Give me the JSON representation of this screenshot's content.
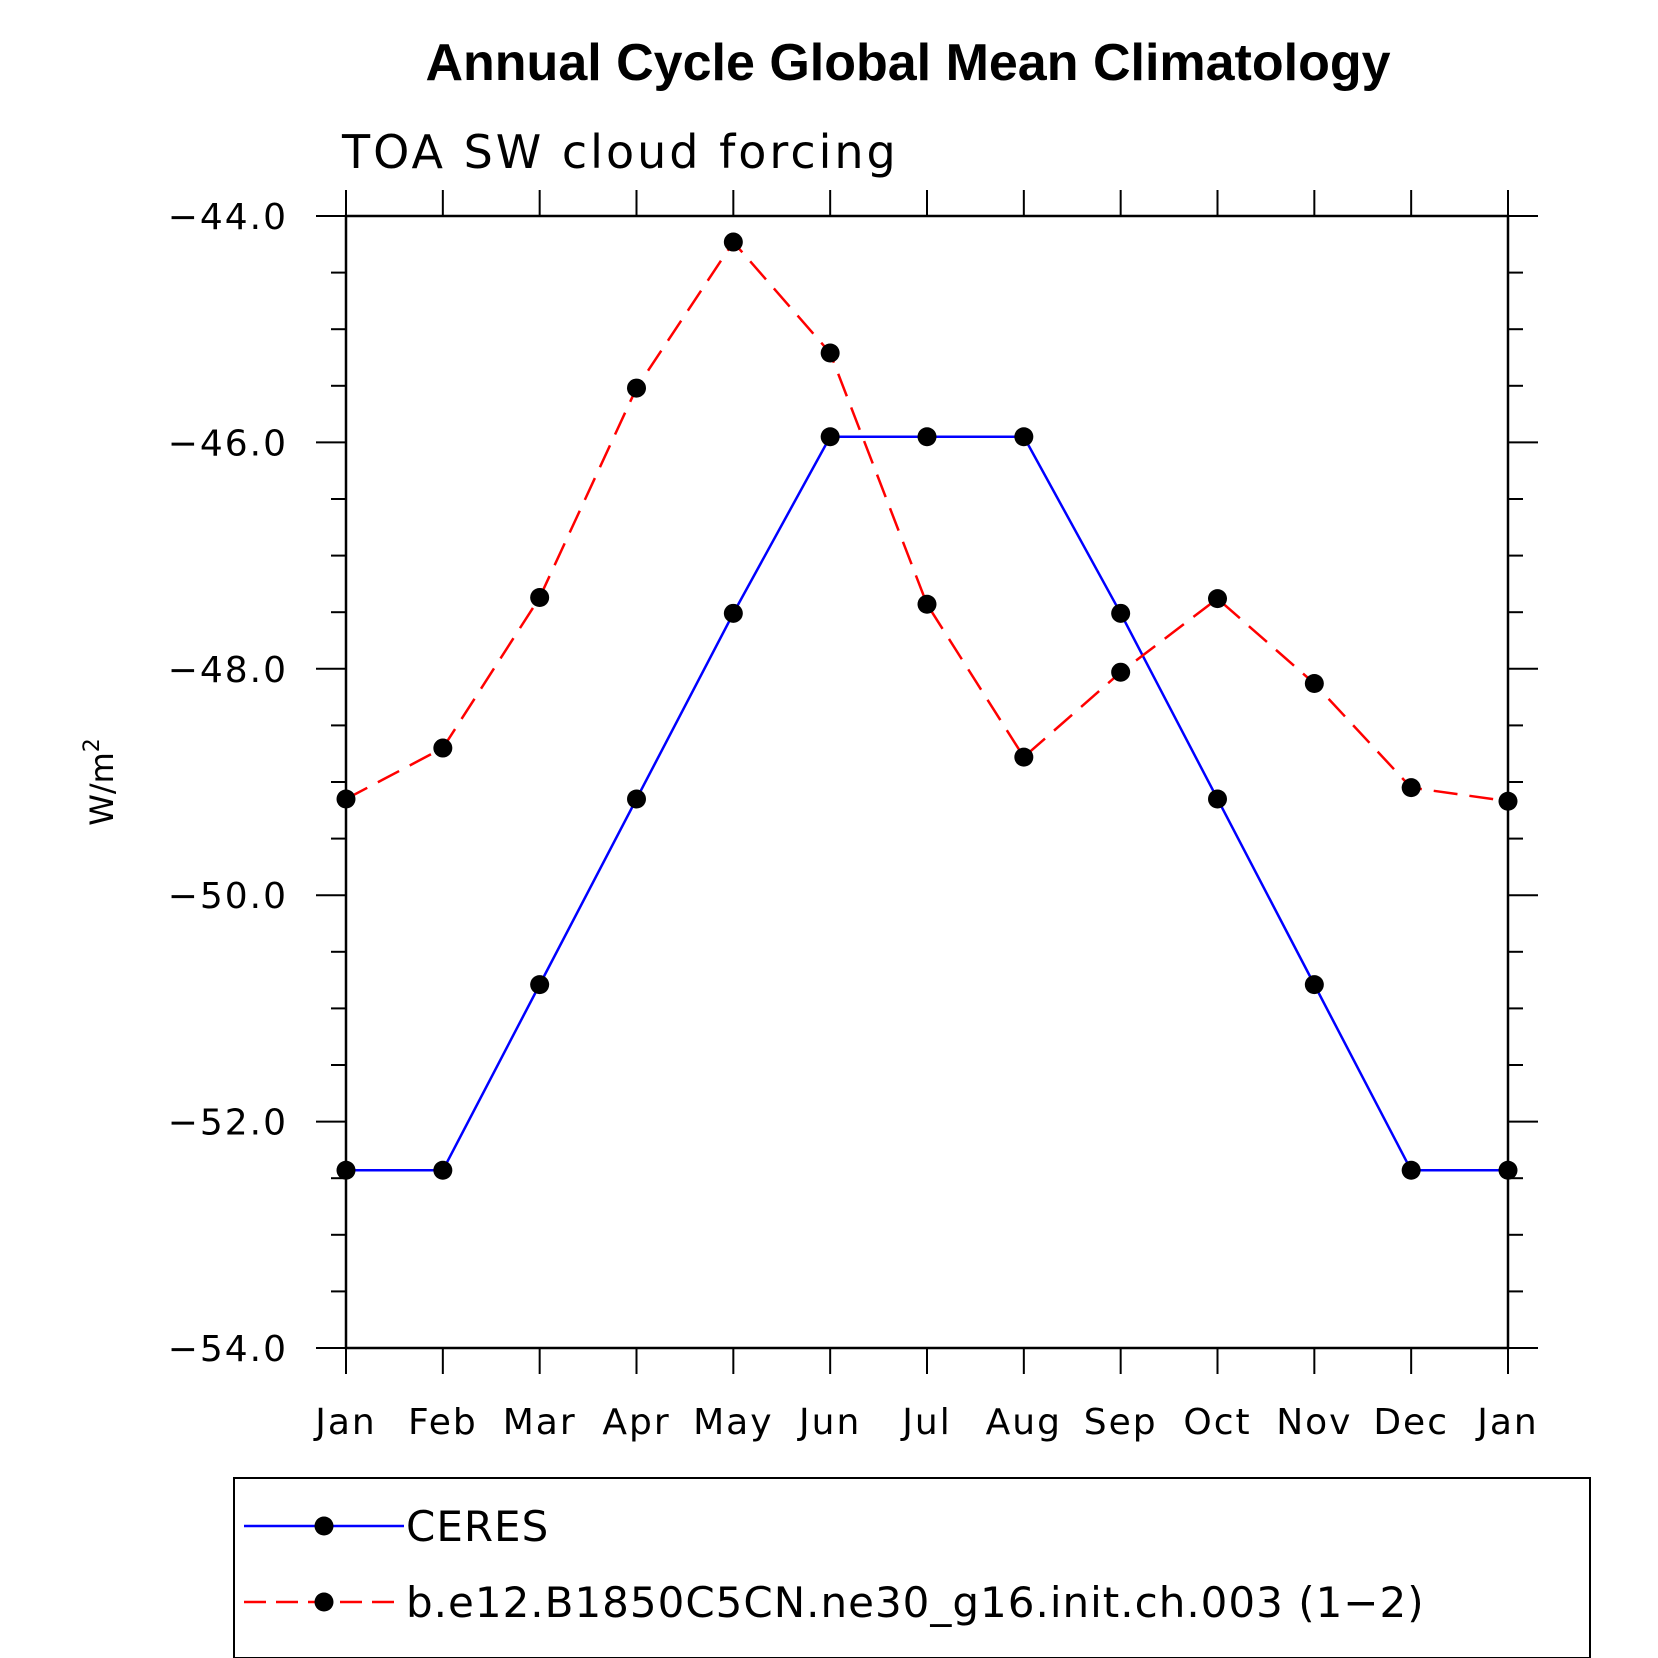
{
  "chart_data": {
    "type": "line",
    "title": "Annual Cycle Global Mean Climatology",
    "subtitle": "TOA SW cloud forcing",
    "ylabel": "W/m",
    "ylabel_superscript": "2",
    "xlabel": "",
    "categories": [
      "Jan",
      "Feb",
      "Mar",
      "Apr",
      "May",
      "Jun",
      "Jul",
      "Aug",
      "Sep",
      "Oct",
      "Nov",
      "Dec",
      "Jan"
    ],
    "ylim": [
      -54.0,
      -44.0
    ],
    "yticks": [
      -44.0,
      -46.0,
      -48.0,
      -50.0,
      -52.0,
      -54.0
    ],
    "ytick_labels": [
      "−44.0",
      "−46.0",
      "−48.0",
      "−50.0",
      "−52.0",
      "−54.0"
    ],
    "grid": false,
    "legend_position": "bottom",
    "series": [
      {
        "name": "CERES",
        "color": "#0000ff",
        "line_style": "solid",
        "marker": "filled-circle",
        "values": [
          -52.43,
          -52.43,
          -50.79,
          -49.15,
          -47.51,
          -45.95,
          -45.95,
          -45.95,
          -47.51,
          -49.15,
          -50.79,
          -52.43,
          -52.43
        ]
      },
      {
        "name": "b.e12.B1850C5CN.ne30_g16.init.ch.003 (1−2)",
        "color": "#ff0000",
        "line_style": "dashed",
        "marker": "filled-circle",
        "values": [
          -49.15,
          -48.7,
          -47.37,
          -45.52,
          -44.23,
          -45.21,
          -47.43,
          -48.78,
          -48.03,
          -47.38,
          -48.13,
          -49.05,
          -49.17
        ]
      }
    ]
  }
}
